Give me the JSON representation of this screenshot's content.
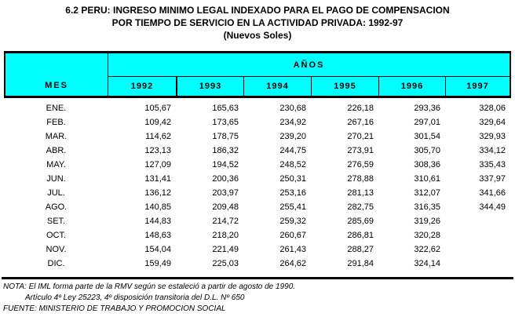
{
  "title": {
    "line1": "6.2 PERU: INGRESO MINIMO LEGAL INDEXADO PARA EL PAGO DE COMPENSACION",
    "line2": "POR TIEMPO DE SERVICIO EN LA ACTIVIDAD PRIVADA: 1992-97",
    "line3": "(Nuevos Soles)"
  },
  "table": {
    "month_column_header": "MES",
    "year_group_header": "AÑOS",
    "years": [
      "1992",
      "1993",
      "1994",
      "1995",
      "1996",
      "1997"
    ],
    "rows": [
      {
        "month": "ENE.",
        "values": [
          "105,67",
          "165,63",
          "230,68",
          "226,18",
          "293,36",
          "328,06"
        ]
      },
      {
        "month": "FEB.",
        "values": [
          "109,42",
          "173,65",
          "234,92",
          "267,16",
          "297,01",
          "329,64"
        ]
      },
      {
        "month": "MAR.",
        "values": [
          "114,62",
          "178,75",
          "239,20",
          "270,21",
          "301,54",
          "329,93"
        ]
      },
      {
        "month": "ABR.",
        "values": [
          "123,13",
          "186,32",
          "244,75",
          "273,91",
          "305,70",
          "334,12"
        ]
      },
      {
        "month": "MAY.",
        "values": [
          "127,09",
          "194,52",
          "248,52",
          "276,59",
          "308,36",
          "335,43"
        ]
      },
      {
        "month": "JUN.",
        "values": [
          "131,41",
          "200,36",
          "250,31",
          "278,88",
          "310,61",
          "337,97"
        ]
      },
      {
        "month": "JUL.",
        "values": [
          "136,12",
          "203,97",
          "253,16",
          "281,13",
          "312,07",
          "341,66"
        ]
      },
      {
        "month": "AGO.",
        "values": [
          "140,85",
          "209,48",
          "255,41",
          "282,75",
          "316,35",
          "344,49"
        ]
      },
      {
        "month": "SET.",
        "values": [
          "144,83",
          "214,72",
          "259,32",
          "285,69",
          "319,26",
          ""
        ]
      },
      {
        "month": "OCT.",
        "values": [
          "148,63",
          "218,20",
          "260,67",
          "286,81",
          "320,28",
          ""
        ]
      },
      {
        "month": "NOV.",
        "values": [
          "154,04",
          "221,49",
          "261,43",
          "288,27",
          "322,62",
          ""
        ]
      },
      {
        "month": "DIC.",
        "values": [
          "159,49",
          "225,03",
          "264,62",
          "291,84",
          "324,14",
          ""
        ]
      }
    ]
  },
  "notes": {
    "nota": "NOTA: El IML forma parte de la RMV según se estaleció a partir de agosto de 1990.",
    "articulo": "Artículo 4º Ley 25223, 4º disposición transitoria del D.L. Nº 650",
    "fuente": "FUENTE: MINISTERIO DE TRABAJO Y PROMOCION SOCIAL"
  },
  "colors": {
    "header_bg": "#00ffff",
    "border": "#000000",
    "text": "#000000"
  }
}
